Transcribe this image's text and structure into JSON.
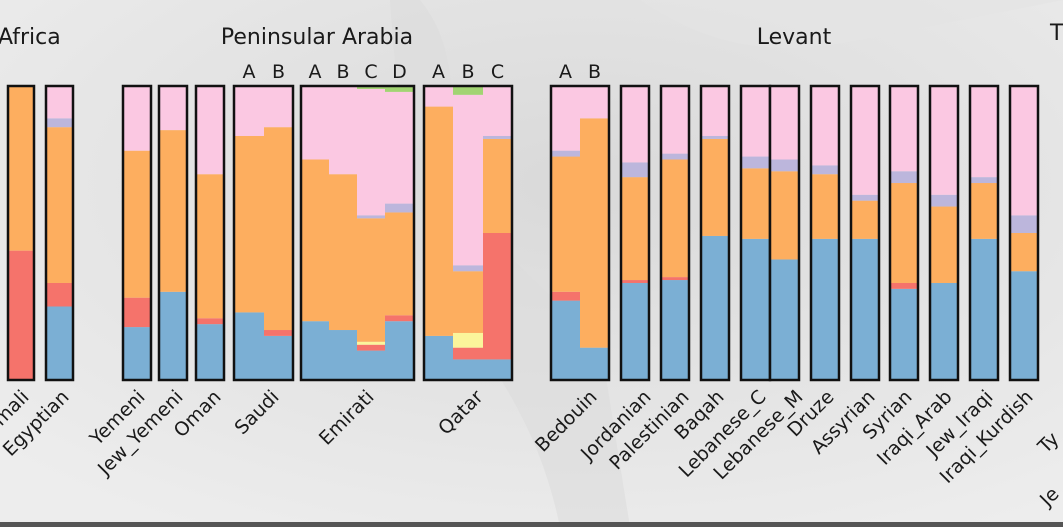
{
  "chart_data": {
    "type": "stacked-bar",
    "title": "",
    "xlabel": "",
    "ylabel": "",
    "ylim": [
      0,
      1
    ],
    "legend": null,
    "components": [
      {
        "key": "blue",
        "color": "#7bafd4"
      },
      {
        "key": "red",
        "color": "#f5736b"
      },
      {
        "key": "yellow",
        "color": "#fbf59b"
      },
      {
        "key": "orange",
        "color": "#fdae5f"
      },
      {
        "key": "purple",
        "color": "#bcb6dc"
      },
      {
        "key": "pink",
        "color": "#fbc8e2"
      },
      {
        "key": "green",
        "color": "#a2d472"
      }
    ],
    "regions": [
      {
        "name": "Africa"
      },
      {
        "name": "Peninsular Arabia"
      },
      {
        "name": "Levant"
      },
      {
        "name": "T"
      }
    ],
    "populations": [
      {
        "label": "mali",
        "bars": [
          {
            "blue": 0.0,
            "red": 0.44,
            "orange": 0.56
          }
        ]
      },
      {
        "label": "Egyptian",
        "bars": [
          {
            "blue": 0.25,
            "red": 0.08,
            "orange": 0.53,
            "purple": 0.03,
            "pink": 0.11
          }
        ]
      },
      {
        "label": "Yemeni",
        "bars": [
          {
            "blue": 0.18,
            "red": 0.1,
            "orange": 0.5,
            "pink": 0.22
          }
        ]
      },
      {
        "label": "Jew_Yemeni",
        "bars": [
          {
            "blue": 0.3,
            "red": 0.0,
            "orange": 0.55,
            "pink": 0.15
          }
        ]
      },
      {
        "label": "Oman",
        "bars": [
          {
            "blue": 0.19,
            "red": 0.02,
            "orange": 0.49,
            "pink": 0.3
          }
        ]
      },
      {
        "label": "Saudi",
        "subgroups": [
          "A",
          "B"
        ],
        "bars": [
          {
            "blue": 0.23,
            "orange": 0.6,
            "pink": 0.17
          },
          {
            "blue": 0.15,
            "red": 0.02,
            "orange": 0.69,
            "pink": 0.14
          }
        ]
      },
      {
        "label": "Emirati",
        "subgroups": [
          "A",
          "B",
          "C",
          "D"
        ],
        "bars": [
          {
            "blue": 0.2,
            "orange": 0.55,
            "pink": 0.25
          },
          {
            "blue": 0.17,
            "orange": 0.53,
            "pink": 0.3
          },
          {
            "blue": 0.1,
            "red": 0.02,
            "yellow": 0.01,
            "orange": 0.42,
            "purple": 0.01,
            "pink": 0.43,
            "green": 0.01
          },
          {
            "blue": 0.2,
            "red": 0.02,
            "orange": 0.35,
            "purple": 0.03,
            "pink": 0.38,
            "green": 0.02
          }
        ]
      },
      {
        "label": "Qatar",
        "subgroups": [
          "A",
          "B",
          "C"
        ],
        "bars": [
          {
            "blue": 0.15,
            "orange": 0.78,
            "pink": 0.07
          },
          {
            "blue": 0.07,
            "red": 0.04,
            "yellow": 0.05,
            "orange": 0.21,
            "purple": 0.02,
            "pink": 0.58,
            "green": 0.03
          },
          {
            "blue": 0.07,
            "red": 0.43,
            "orange": 0.32,
            "purple": 0.01,
            "pink": 0.17
          }
        ]
      },
      {
        "label": "Bedouin",
        "subgroups": [
          "A",
          "B"
        ],
        "bars": [
          {
            "blue": 0.27,
            "red": 0.03,
            "orange": 0.46,
            "purple": 0.02,
            "pink": 0.22
          },
          {
            "blue": 0.11,
            "orange": 0.78,
            "pink": 0.11
          }
        ]
      },
      {
        "label": "Jordanian",
        "bars": [
          {
            "blue": 0.33,
            "red": 0.01,
            "orange": 0.35,
            "purple": 0.05,
            "pink": 0.26
          }
        ]
      },
      {
        "label": "Palestinian",
        "bars": [
          {
            "blue": 0.34,
            "red": 0.01,
            "orange": 0.4,
            "purple": 0.02,
            "pink": 0.23
          }
        ]
      },
      {
        "label": "Baqah",
        "bars": [
          {
            "blue": 0.49,
            "orange": 0.33,
            "purple": 0.01,
            "pink": 0.17
          }
        ]
      },
      {
        "label": "Lebanese_C",
        "bars": [
          {
            "blue": 0.48,
            "orange": 0.24,
            "purple": 0.04,
            "pink": 0.24
          }
        ]
      },
      {
        "label": "Lebanese_M",
        "bars": [
          {
            "blue": 0.41,
            "orange": 0.3,
            "purple": 0.04,
            "pink": 0.25
          }
        ]
      },
      {
        "label": "Druze",
        "bars": [
          {
            "blue": 0.48,
            "orange": 0.22,
            "purple": 0.03,
            "pink": 0.27
          }
        ]
      },
      {
        "label": "Assyrian",
        "bars": [
          {
            "blue": 0.48,
            "orange": 0.13,
            "purple": 0.02,
            "pink": 0.37
          }
        ]
      },
      {
        "label": "Syrian",
        "bars": [
          {
            "blue": 0.31,
            "red": 0.02,
            "orange": 0.34,
            "purple": 0.04,
            "pink": 0.29
          }
        ]
      },
      {
        "label": "Iraqi_Arab",
        "bars": [
          {
            "blue": 0.33,
            "orange": 0.26,
            "purple": 0.04,
            "pink": 0.37
          }
        ]
      },
      {
        "label": "Jew_Iraqi",
        "bars": [
          {
            "blue": 0.48,
            "orange": 0.19,
            "purple": 0.02,
            "pink": 0.31
          }
        ]
      },
      {
        "label": "Iraqi_Kurdish",
        "bars": [
          {
            "blue": 0.37,
            "orange": 0.13,
            "purple": 0.06,
            "pink": 0.44
          }
        ]
      },
      {
        "label": "Ty",
        "bars": []
      },
      {
        "label": "Je",
        "bars": []
      }
    ]
  }
}
